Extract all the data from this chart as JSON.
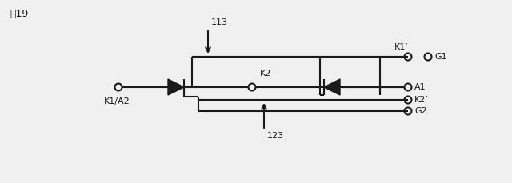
{
  "fig_label": "囲19",
  "bg_color": "#f0f0f0",
  "line_color": "#1a1a1a",
  "label_113": "113",
  "label_123": "123",
  "label_K1A2": "K1/A2",
  "label_K2": "K2",
  "label_K1p": "K1’",
  "label_G1": "G1",
  "label_A1": "A1",
  "label_K2p": "K2’",
  "label_G2": "G2"
}
